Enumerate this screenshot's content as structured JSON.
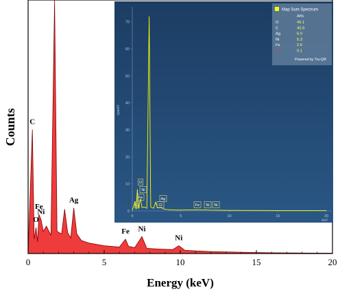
{
  "colors": {
    "main_spectrum_fill": "#ef3b3b",
    "main_spectrum_line": "#7a0000",
    "inset_background": "#21476f",
    "inset_spectrum": "#ffff00",
    "inset_text": "#b8c9dc"
  },
  "chart_data": [
    {
      "type": "area",
      "title": "",
      "xlabel": "Energy (keV)",
      "ylabel": "Counts",
      "xlim": [
        0,
        20
      ],
      "xticks": [
        "0",
        "5",
        "10",
        "15",
        "20"
      ],
      "grid": false,
      "peak_labels": [
        {
          "text": "C",
          "x": 0.28
        },
        {
          "text": "O",
          "x": 0.52
        },
        {
          "text": "Fe",
          "x": 0.71
        },
        {
          "text": "Ni",
          "x": 0.85
        },
        {
          "text": "Ag",
          "x": 3.0
        },
        {
          "text": "Fe",
          "x": 6.4
        },
        {
          "text": "Ni",
          "x": 7.48
        },
        {
          "text": "Ni",
          "x": 9.9
        }
      ],
      "x": [
        0,
        0.28,
        0.4,
        0.52,
        0.62,
        0.71,
        0.85,
        1.0,
        1.2,
        1.5,
        1.74,
        1.9,
        2.2,
        2.4,
        2.6,
        2.8,
        3.0,
        3.2,
        3.5,
        4.0,
        5.0,
        6.0,
        6.4,
        6.6,
        7.0,
        7.48,
        7.8,
        8.5,
        9.5,
        9.9,
        10.3,
        11.0,
        12.0,
        13.0,
        14.0,
        15.0,
        16.0,
        18.0,
        20.0
      ],
      "y": [
        2,
        190,
        22,
        40,
        18,
        60,
        52,
        34,
        42,
        28,
        1100,
        34,
        30,
        68,
        32,
        24,
        70,
        30,
        20,
        16,
        12,
        10,
        22,
        11,
        9,
        26,
        8,
        7,
        6,
        12,
        5,
        4,
        3,
        2.5,
        2,
        1.6,
        1.2,
        0.8,
        0.5
      ]
    },
    {
      "type": "line",
      "title": "",
      "ylabel": "cps/eV",
      "xunit": "keV",
      "xlim": [
        0,
        20
      ],
      "ylim": [
        0,
        75
      ],
      "xticks": [
        "0",
        "5",
        "10",
        "15",
        "20"
      ],
      "yticks": [
        "0",
        "10",
        "20",
        "30",
        "40",
        "50",
        "60",
        "70"
      ],
      "x": [
        0,
        0.28,
        0.4,
        0.52,
        0.62,
        0.71,
        0.85,
        1.0,
        1.2,
        1.5,
        1.74,
        1.9,
        2.2,
        2.4,
        2.6,
        3.0,
        3.2,
        3.6,
        4.5,
        6.4,
        7.48,
        8.0,
        10.0,
        15.0,
        20.0
      ],
      "y": [
        0.2,
        3.5,
        0.6,
        8,
        0.8,
        2.5,
        4.5,
        1.2,
        1.5,
        1.0,
        72,
        1.4,
        1.0,
        3.2,
        1.2,
        1.3,
        0.7,
        0.5,
        0.3,
        0.4,
        0.4,
        0.3,
        0.2,
        0.15,
        0.1
      ],
      "peak_boxes": [
        "C",
        "O",
        "Fe",
        "Ni",
        "Ag",
        "Cl",
        "Fe",
        "Ni",
        "Ni"
      ],
      "legend": {
        "title": "Map Sum Spectrum",
        "column_header": "At%",
        "rows": [
          {
            "element": "O",
            "value": "45.1"
          },
          {
            "element": "C",
            "value": "40.9"
          },
          {
            "element": "Ag",
            "value": "6.0"
          },
          {
            "element": "Ni",
            "value": "5.3"
          },
          {
            "element": "Fe",
            "value": "2.6"
          },
          {
            "element": "Cl",
            "value": "0.1"
          }
        ],
        "footer": "Powered by Tru-Q®"
      }
    }
  ]
}
